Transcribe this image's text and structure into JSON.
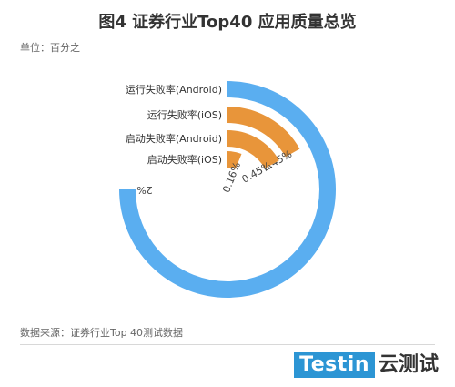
{
  "header": {
    "title": "图4 证券行业Top40 应用质量总览",
    "unit": "单位：百分之"
  },
  "footer": {
    "source": "数据来源：证券行业Top 40测试数据",
    "logo_text": "Testin",
    "logo_cn": "云测试"
  },
  "colors": {
    "full": "#5aaef0",
    "partial": "#e8953a"
  },
  "chart_data": {
    "type": "radial-bar",
    "series": [
      {
        "name": "运行失败率(Android)",
        "value": 2,
        "label": "2%"
      },
      {
        "name": "运行失败率(iOS)",
        "value": 0.45,
        "label": "0.45%"
      },
      {
        "name": "启动失败率(Android)",
        "value": 0.45,
        "label": "0.45%"
      },
      {
        "name": "启动失败率(iOS)",
        "value": 0.16,
        "label": "0.16%"
      }
    ]
  }
}
